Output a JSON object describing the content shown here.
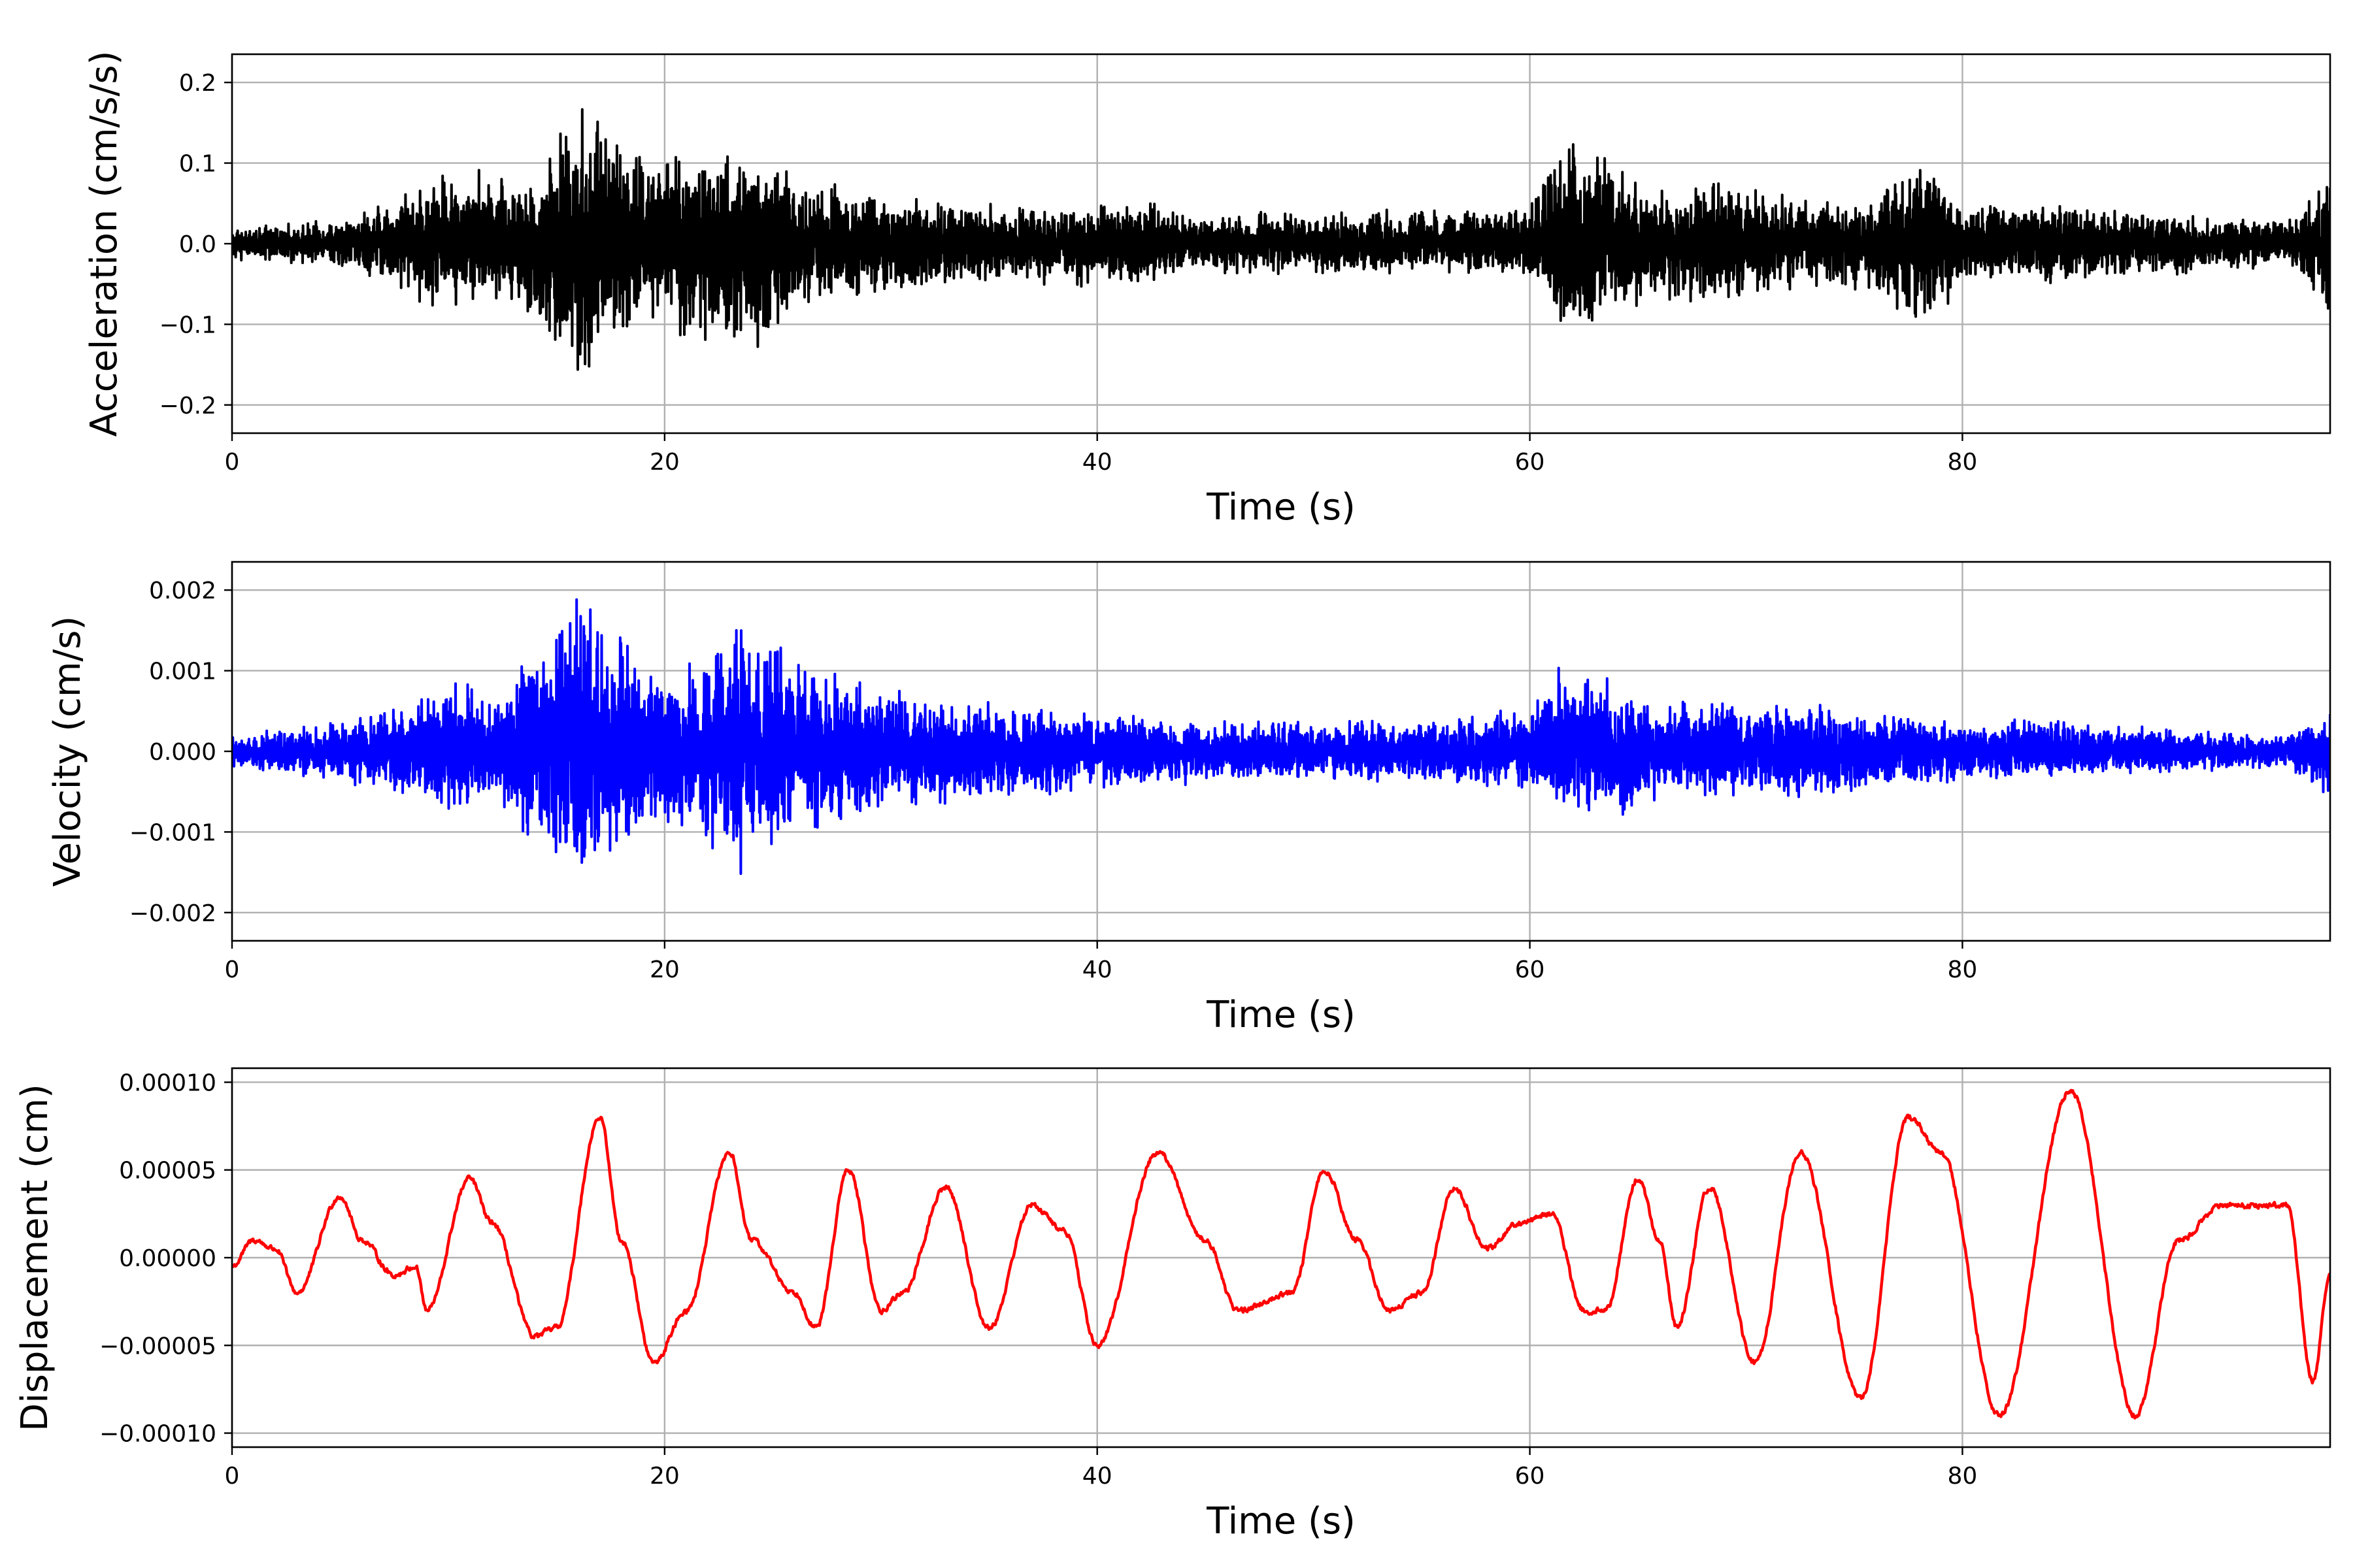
{
  "chart_data": [
    {
      "type": "line",
      "title": "",
      "xlabel": "Time (s)",
      "ylabel": "Acceleration (cm/s/s)",
      "xlim": [
        0,
        97
      ],
      "ylim": [
        -0.235,
        0.235
      ],
      "grid": true,
      "xticks": [
        0,
        20,
        40,
        60,
        80
      ],
      "xtick_labels": [
        "0",
        "20",
        "40",
        "60",
        "80"
      ],
      "yticks": [
        -0.2,
        -0.1,
        0.0,
        0.1,
        0.2
      ],
      "ytick_labels": [
        "−0.2",
        "−0.1",
        "0.0",
        "0.1",
        "0.2"
      ],
      "series": [
        {
          "color": "#000000",
          "style": "noisy",
          "envelope": {
            "t": [
              0,
              5,
              8,
              10,
              12,
              13.5,
              16,
              17,
              19,
              21,
              23.5,
              26,
              29,
              32,
              36,
              40,
              42,
              44,
              48,
              52,
              57,
              60,
              62,
              64,
              66,
              68,
              72,
              76,
              78.3,
              80,
              85,
              90,
              95,
              96,
              97
            ],
            "pos": [
              0.02,
              0.03,
              0.07,
              0.1,
              0.1,
              0.08,
              0.19,
              0.17,
              0.12,
              0.13,
              0.13,
              0.09,
              0.07,
              0.06,
              0.05,
              0.05,
              0.06,
              0.04,
              0.04,
              0.04,
              0.05,
              0.05,
              0.15,
              0.11,
              0.07,
              0.09,
              0.06,
              0.06,
              0.11,
              0.05,
              0.05,
              0.04,
              0.03,
              0.06,
              0.09
            ],
            "neg": [
              0.02,
              0.03,
              0.06,
              0.1,
              0.08,
              0.09,
              0.21,
              0.15,
              0.1,
              0.12,
              0.16,
              0.1,
              0.07,
              0.06,
              0.05,
              0.06,
              0.06,
              0.04,
              0.04,
              0.04,
              0.04,
              0.05,
              0.12,
              0.1,
              0.07,
              0.08,
              0.06,
              0.06,
              0.12,
              0.05,
              0.05,
              0.04,
              0.03,
              0.05,
              0.1
            ]
          }
        }
      ]
    },
    {
      "type": "line",
      "title": "",
      "xlabel": "Time (s)",
      "ylabel": "Velocity (cm/s)",
      "xlim": [
        0,
        97
      ],
      "ylim": [
        -0.00235,
        0.00235
      ],
      "grid": true,
      "xticks": [
        0,
        20,
        40,
        60,
        80
      ],
      "xtick_labels": [
        "0",
        "20",
        "40",
        "60",
        "80"
      ],
      "yticks": [
        -0.002,
        -0.001,
        0.0,
        0.001,
        0.002
      ],
      "ytick_labels": [
        "−0.002",
        "−0.001",
        "0.000",
        "0.001",
        "0.002"
      ],
      "series": [
        {
          "color": "#0000ff",
          "style": "noisy",
          "envelope": {
            "t": [
              0,
              5,
              8,
              10.5,
              12,
              14,
              16,
              17,
              19,
              21,
              23.5,
              26,
              28,
              32,
              36,
              40,
              45,
              50,
              55,
              60,
              62,
              64,
              66,
              68,
              72,
              75,
              80,
              85,
              90,
              95,
              97
            ],
            "pos": [
              0.0002,
              0.0004,
              0.0006,
              0.001,
              0.0007,
              0.0014,
              0.0021,
              0.0017,
              0.0012,
              0.0012,
              0.0017,
              0.0012,
              0.0011,
              0.0007,
              0.0006,
              0.0005,
              0.0004,
              0.0004,
              0.0004,
              0.0006,
              0.0013,
              0.0009,
              0.0006,
              0.0007,
              0.0007,
              0.0005,
              0.0004,
              0.0004,
              0.0003,
              0.0002,
              0.0005
            ],
            "neg": [
              0.0002,
              0.0004,
              0.0006,
              0.0009,
              0.0006,
              0.0012,
              0.0021,
              0.0015,
              0.0011,
              0.0011,
              0.0016,
              0.0011,
              0.001,
              0.0007,
              0.0006,
              0.0005,
              0.0004,
              0.0004,
              0.0004,
              0.0005,
              0.0009,
              0.0009,
              0.0006,
              0.0006,
              0.0006,
              0.0005,
              0.0004,
              0.0003,
              0.0003,
              0.0002,
              0.0006
            ]
          }
        }
      ]
    },
    {
      "type": "line",
      "title": "",
      "xlabel": "Time (s)",
      "ylabel": "Displacement (cm)",
      "xlim": [
        0,
        97
      ],
      "ylim": [
        -0.000108,
        0.000108
      ],
      "grid": true,
      "xticks": [
        0,
        20,
        40,
        60,
        80
      ],
      "xtick_labels": [
        "0",
        "20",
        "40",
        "60",
        "80"
      ],
      "yticks": [
        -0.0001,
        -5e-05,
        0.0,
        5e-05,
        0.0001
      ],
      "ytick_labels": [
        "−0.00010",
        "−0.00005",
        "0.00000",
        "0.00005",
        "0.00010"
      ],
      "series": [
        {
          "color": "#ff0000",
          "style": "smooth",
          "x": [
            0,
            1,
            2,
            3,
            5,
            6,
            7.5,
            8.5,
            9,
            11,
            12,
            14,
            15,
            17,
            18,
            19.5,
            21,
            23,
            24,
            26,
            27,
            28.5,
            30,
            31,
            33,
            35,
            37,
            38.5,
            40,
            42.8,
            45,
            46.5,
            49,
            50.5,
            52,
            53.5,
            55,
            56.5,
            58,
            59.5,
            61,
            62.5,
            63.5,
            65,
            66,
            66.8,
            68.3,
            70.4,
            72.5,
            75.3,
            77.5,
            79,
            81.7,
            85,
            88,
            90,
            92,
            95,
            96.2,
            97
          ],
          "y": [
            -5e-06,
            1e-05,
            5e-06,
            -2e-05,
            3.5e-05,
            1e-05,
            -1e-05,
            -5e-06,
            -3e-05,
            4.5e-05,
            2e-05,
            -4.5e-05,
            -4e-05,
            8e-05,
            1e-05,
            -6e-05,
            -3e-05,
            6e-05,
            1e-05,
            -2e-05,
            -4e-05,
            5e-05,
            -3e-05,
            -2e-05,
            4e-05,
            -4e-05,
            3e-05,
            1.5e-05,
            -5e-05,
            6e-05,
            1e-05,
            -3e-05,
            -2e-05,
            5e-05,
            1e-05,
            -3e-05,
            -2e-05,
            4e-05,
            5e-06,
            2e-05,
            2.5e-05,
            -3e-05,
            -3e-05,
            4.5e-05,
            1e-05,
            -4e-05,
            4e-05,
            -6e-05,
            6e-05,
            -8e-05,
            8e-05,
            6e-05,
            -9e-05,
            9.5e-05,
            -9e-05,
            1e-05,
            3e-05,
            3e-05,
            -7e-05,
            -1e-05
          ]
        }
      ]
    }
  ]
}
